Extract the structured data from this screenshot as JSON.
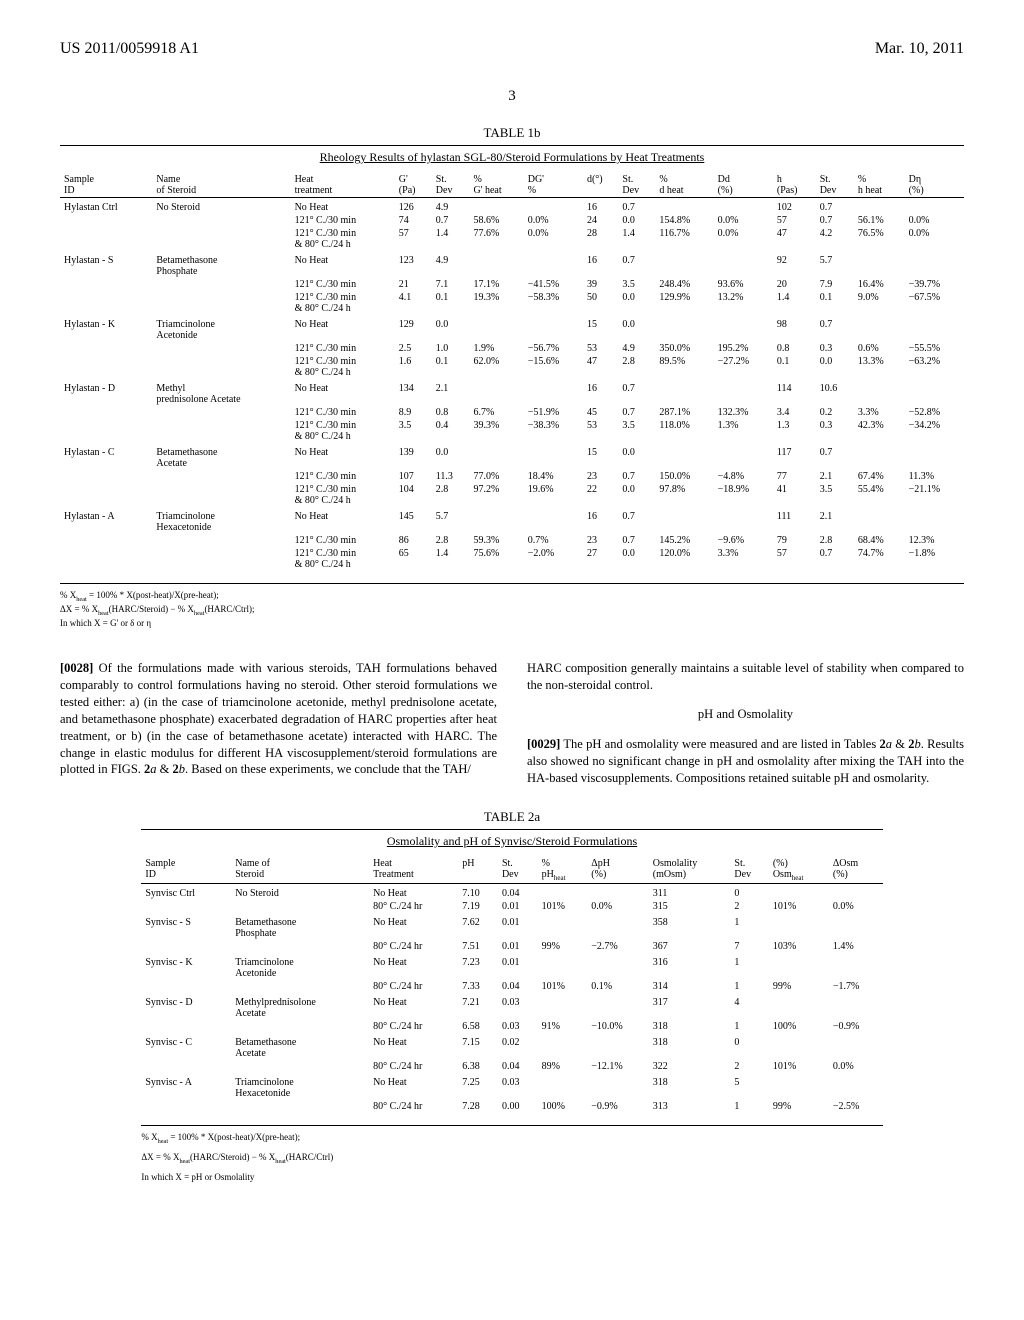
{
  "header": {
    "pubNumber": "US 2011/0059918 A1",
    "date": "Mar. 10, 2011",
    "pageNum": "3"
  },
  "table1b": {
    "label": "TABLE 1b",
    "title": "Rheology Results of hylastan SGL-80/Steroid Formulations by Heat Treatments",
    "columns": [
      "Sample ID",
      "Name of Steroid",
      "Heat treatment",
      "G' (Pa)",
      "St. Dev",
      "% G' heat",
      "DG' %",
      "d(°)",
      "St. Dev",
      "% d heat",
      "Dd (%)",
      "h (Pas)",
      "St. Dev",
      "% h heat",
      "Dη (%)"
    ],
    "rows": [
      {
        "sample": "Hylastan Ctrl",
        "steroid": "No Steroid",
        "treat": "No Heat",
        "g": "126",
        "gsd": "4.9",
        "pg": "",
        "dg": "",
        "d": "16",
        "dsd": "0.7",
        "pd": "",
        "dd": "",
        "h": "102",
        "hsd": "0.7",
        "ph": "",
        "dh": ""
      },
      {
        "sample": "",
        "steroid": "",
        "treat": "121° C./30 min",
        "g": "74",
        "gsd": "0.7",
        "pg": "58.6%",
        "dg": "0.0%",
        "d": "24",
        "dsd": "0.0",
        "pd": "154.8%",
        "dd": "0.0%",
        "h": "57",
        "hsd": "0.7",
        "ph": "56.1%",
        "dh": "0.0%"
      },
      {
        "sample": "",
        "steroid": "",
        "treat": "121° C./30 min & 80° C./24 h",
        "g": "57",
        "gsd": "1.4",
        "pg": "77.6%",
        "dg": "0.0%",
        "d": "28",
        "dsd": "1.4",
        "pd": "116.7%",
        "dd": "0.0%",
        "h": "47",
        "hsd": "4.2",
        "ph": "76.5%",
        "dh": "0.0%"
      },
      {
        "sample": "Hylastan - S",
        "steroid": "Betamethasone Phosphate",
        "treat": "No Heat",
        "g": "123",
        "gsd": "4.9",
        "pg": "",
        "dg": "",
        "d": "16",
        "dsd": "0.7",
        "pd": "",
        "dd": "",
        "h": "92",
        "hsd": "5.7",
        "ph": "",
        "dh": ""
      },
      {
        "sample": "",
        "steroid": "",
        "treat": "121° C./30 min",
        "g": "21",
        "gsd": "7.1",
        "pg": "17.1%",
        "dg": "−41.5%",
        "d": "39",
        "dsd": "3.5",
        "pd": "248.4%",
        "dd": "93.6%",
        "h": "20",
        "hsd": "7.9",
        "ph": "16.4%",
        "dh": "−39.7%"
      },
      {
        "sample": "",
        "steroid": "",
        "treat": "121° C./30 min & 80° C./24 h",
        "g": "4.1",
        "gsd": "0.1",
        "pg": "19.3%",
        "dg": "−58.3%",
        "d": "50",
        "dsd": "0.0",
        "pd": "129.9%",
        "dd": "13.2%",
        "h": "1.4",
        "hsd": "0.1",
        "ph": "9.0%",
        "dh": "−67.5%"
      },
      {
        "sample": "Hylastan - K",
        "steroid": "Triamcinolone Acetonide",
        "treat": "No Heat",
        "g": "129",
        "gsd": "0.0",
        "pg": "",
        "dg": "",
        "d": "15",
        "dsd": "0.0",
        "pd": "",
        "dd": "",
        "h": "98",
        "hsd": "0.7",
        "ph": "",
        "dh": ""
      },
      {
        "sample": "",
        "steroid": "",
        "treat": "121° C./30 min",
        "g": "2.5",
        "gsd": "1.0",
        "pg": "1.9%",
        "dg": "−56.7%",
        "d": "53",
        "dsd": "4.9",
        "pd": "350.0%",
        "dd": "195.2%",
        "h": "0.8",
        "hsd": "0.3",
        "ph": "0.6%",
        "dh": "−55.5%"
      },
      {
        "sample": "",
        "steroid": "",
        "treat": "121° C./30 min & 80° C./24 h",
        "g": "1.6",
        "gsd": "0.1",
        "pg": "62.0%",
        "dg": "−15.6%",
        "d": "47",
        "dsd": "2.8",
        "pd": "89.5%",
        "dd": "−27.2%",
        "h": "0.1",
        "hsd": "0.0",
        "ph": "13.3%",
        "dh": "−63.2%"
      },
      {
        "sample": "Hylastan - D",
        "steroid": "Methyl prednisolone Acetate",
        "treat": "No Heat",
        "g": "134",
        "gsd": "2.1",
        "pg": "",
        "dg": "",
        "d": "16",
        "dsd": "0.7",
        "pd": "",
        "dd": "",
        "h": "114",
        "hsd": "10.6",
        "ph": "",
        "dh": ""
      },
      {
        "sample": "",
        "steroid": "",
        "treat": "121° C./30 min",
        "g": "8.9",
        "gsd": "0.8",
        "pg": "6.7%",
        "dg": "−51.9%",
        "d": "45",
        "dsd": "0.7",
        "pd": "287.1%",
        "dd": "132.3%",
        "h": "3.4",
        "hsd": "0.2",
        "ph": "3.3%",
        "dh": "−52.8%"
      },
      {
        "sample": "",
        "steroid": "",
        "treat": "121° C./30 min & 80° C./24 h",
        "g": "3.5",
        "gsd": "0.4",
        "pg": "39.3%",
        "dg": "−38.3%",
        "d": "53",
        "dsd": "3.5",
        "pd": "118.0%",
        "dd": "1.3%",
        "h": "1.3",
        "hsd": "0.3",
        "ph": "42.3%",
        "dh": "−34.2%"
      },
      {
        "sample": "Hylastan - C",
        "steroid": "Betamethasone Acetate",
        "treat": "No Heat",
        "g": "139",
        "gsd": "0.0",
        "pg": "",
        "dg": "",
        "d": "15",
        "dsd": "0.0",
        "pd": "",
        "dd": "",
        "h": "117",
        "hsd": "0.7",
        "ph": "",
        "dh": ""
      },
      {
        "sample": "",
        "steroid": "",
        "treat": "121° C./30 min",
        "g": "107",
        "gsd": "11.3",
        "pg": "77.0%",
        "dg": "18.4%",
        "d": "23",
        "dsd": "0.7",
        "pd": "150.0%",
        "dd": "−4.8%",
        "h": "77",
        "hsd": "2.1",
        "ph": "67.4%",
        "dh": "11.3%"
      },
      {
        "sample": "",
        "steroid": "",
        "treat": "121° C./30 min & 80° C./24 h",
        "g": "104",
        "gsd": "2.8",
        "pg": "97.2%",
        "dg": "19.6%",
        "d": "22",
        "dsd": "0.0",
        "pd": "97.8%",
        "dd": "−18.9%",
        "h": "41",
        "hsd": "3.5",
        "ph": "55.4%",
        "dh": "−21.1%"
      },
      {
        "sample": "Hylastan - A",
        "steroid": "Triamcinolone Hexacetonide",
        "treat": "No Heat",
        "g": "145",
        "gsd": "5.7",
        "pg": "",
        "dg": "",
        "d": "16",
        "dsd": "0.7",
        "pd": "",
        "dd": "",
        "h": "111",
        "hsd": "2.1",
        "ph": "",
        "dh": ""
      },
      {
        "sample": "",
        "steroid": "",
        "treat": "121° C./30 min",
        "g": "86",
        "gsd": "2.8",
        "pg": "59.3%",
        "dg": "0.7%",
        "d": "23",
        "dsd": "0.7",
        "pd": "145.2%",
        "dd": "−9.6%",
        "h": "79",
        "hsd": "2.8",
        "ph": "68.4%",
        "dh": "12.3%"
      },
      {
        "sample": "",
        "steroid": "",
        "treat": "121° C./30 min & 80° C./24 h",
        "g": "65",
        "gsd": "1.4",
        "pg": "75.6%",
        "dg": "−2.0%",
        "d": "27",
        "dsd": "0.0",
        "pd": "120.0%",
        "dd": "3.3%",
        "h": "57",
        "hsd": "0.7",
        "ph": "74.7%",
        "dh": "−1.8%"
      }
    ]
  },
  "footnotes1": {
    "l1": "% X",
    "l1b": " = 100% * X(post-heat)/X(pre-heat);",
    "l2": "ΔX = % X",
    "l2b": "(HARC/Steroid) − % X",
    "l2c": "(HARC/Ctrl);",
    "l3": "In which X = G' or δ or η",
    "sub": "heat"
  },
  "bodyText": {
    "p28num": "[0028]",
    "p28": "   Of the formulations made with various steroids, TAH formulations behaved comparably to control formulations having no steroid. Other steroid formulations we tested either: a) (in the case of triamcinolone acetonide, methyl prednisolone acetate, and betamethasone phosphate) exacerbated degradation of HARC properties after heat treatment, or b) (in the case of betamethasone acetate) interacted with HARC. The change in elastic modulus for different HA viscosupplement/steroid formulations are plotted in FIGS. ",
    "p28b": "2",
    "p28c": "a",
    "p28d": " & ",
    "p28e": "2",
    "p28f": "b",
    "p28g": ". Based on these experiments, we conclude that the TAH/",
    "col2a": "HARC composition generally maintains a suitable level of stability when compared to the non-steroidal control.",
    "sectionHdr": "pH and Osmolality",
    "p29num": "[0029]",
    "p29": "   The pH and osmolality were measured and are listed in Tables ",
    "p29b": "2",
    "p29c": "a",
    "p29d": " & ",
    "p29e": "2",
    "p29f": "b",
    "p29g": ". Results also showed no significant change in pH and osmolality after mixing the TAH into the HA-based viscosupplements. Compositions retained suitable pH and osmolarity."
  },
  "table2a": {
    "label": "TABLE 2a",
    "title": "Osmolality and pH of Synvisc/Steroid Formulations",
    "columns": [
      "Sample ID",
      "Name of Steroid",
      "Heat Treatment",
      "pH",
      "St. Dev",
      "% pH",
      "ΔpH (%)",
      "Osmolality (mOsm)",
      "St. Dev",
      "(%) Osm",
      "ΔOsm (%)"
    ],
    "subHeat": "heat",
    "rows": [
      {
        "sample": "Synvisc Ctrl",
        "steroid": "No Steroid",
        "treat": "No Heat",
        "ph": "7.10",
        "psd": "0.04",
        "pph": "",
        "dph": "",
        "osm": "311",
        "osd": "0",
        "posm": "",
        "dosm": ""
      },
      {
        "sample": "",
        "steroid": "",
        "treat": "80° C./24 hr",
        "ph": "7.19",
        "psd": "0.01",
        "pph": "101%",
        "dph": "0.0%",
        "osm": "315",
        "osd": "2",
        "posm": "101%",
        "dosm": "0.0%"
      },
      {
        "sample": "Synvisc - S",
        "steroid": "Betamethasone Phosphate",
        "treat": "No Heat",
        "ph": "7.62",
        "psd": "0.01",
        "pph": "",
        "dph": "",
        "osm": "358",
        "osd": "1",
        "posm": "",
        "dosm": ""
      },
      {
        "sample": "",
        "steroid": "",
        "treat": "80° C./24 hr",
        "ph": "7.51",
        "psd": "0.01",
        "pph": "99%",
        "dph": "−2.7%",
        "osm": "367",
        "osd": "7",
        "posm": "103%",
        "dosm": "1.4%"
      },
      {
        "sample": "Synvisc - K",
        "steroid": "Triamcinolone Acetonide",
        "treat": "No Heat",
        "ph": "7.23",
        "psd": "0.01",
        "pph": "",
        "dph": "",
        "osm": "316",
        "osd": "1",
        "posm": "",
        "dosm": ""
      },
      {
        "sample": "",
        "steroid": "",
        "treat": "80° C./24 hr",
        "ph": "7.33",
        "psd": "0.04",
        "pph": "101%",
        "dph": "0.1%",
        "osm": "314",
        "osd": "1",
        "posm": "99%",
        "dosm": "−1.7%"
      },
      {
        "sample": "Synvisc - D",
        "steroid": "Methylprednisolone Acetate",
        "treat": "No Heat",
        "ph": "7.21",
        "psd": "0.03",
        "pph": "",
        "dph": "",
        "osm": "317",
        "osd": "4",
        "posm": "",
        "dosm": ""
      },
      {
        "sample": "",
        "steroid": "",
        "treat": "80° C./24 hr",
        "ph": "6.58",
        "psd": "0.03",
        "pph": "91%",
        "dph": "−10.0%",
        "osm": "318",
        "osd": "1",
        "posm": "100%",
        "dosm": "−0.9%"
      },
      {
        "sample": "Synvisc - C",
        "steroid": "Betamethasone Acetate",
        "treat": "No Heat",
        "ph": "7.15",
        "psd": "0.02",
        "pph": "",
        "dph": "",
        "osm": "318",
        "osd": "0",
        "posm": "",
        "dosm": ""
      },
      {
        "sample": "",
        "steroid": "",
        "treat": "80° C./24 hr",
        "ph": "6.38",
        "psd": "0.04",
        "pph": "89%",
        "dph": "−12.1%",
        "osm": "322",
        "osd": "2",
        "posm": "101%",
        "dosm": "0.0%"
      },
      {
        "sample": "Synvisc - A",
        "steroid": "Triamcinolone Hexacetonide",
        "treat": "No Heat",
        "ph": "7.25",
        "psd": "0.03",
        "pph": "",
        "dph": "",
        "osm": "318",
        "osd": "5",
        "posm": "",
        "dosm": ""
      },
      {
        "sample": "",
        "steroid": "",
        "treat": "80° C./24 hr",
        "ph": "7.28",
        "psd": "0.00",
        "pph": "100%",
        "dph": "−0.9%",
        "osm": "313",
        "osd": "1",
        "posm": "99%",
        "dosm": "−2.5%"
      }
    ]
  },
  "footnotes2": {
    "l1": "% X",
    "l1b": " = 100% * X(post-heat)/X(pre-heat);",
    "l2": "ΔX = % X",
    "l2b": "(HARC/Steroid) − % X",
    "l2c": "(HARC/Ctrl)",
    "l3": "In which X = pH or Osmolality",
    "sub": "heat"
  },
  "style": {
    "fontFamily": "Times New Roman",
    "bodyFontSize": 12.5,
    "tableFontSize": 10,
    "footnoteFontSize": 9,
    "background": "#ffffff",
    "text": "#000000",
    "borderColor": "#000000"
  }
}
